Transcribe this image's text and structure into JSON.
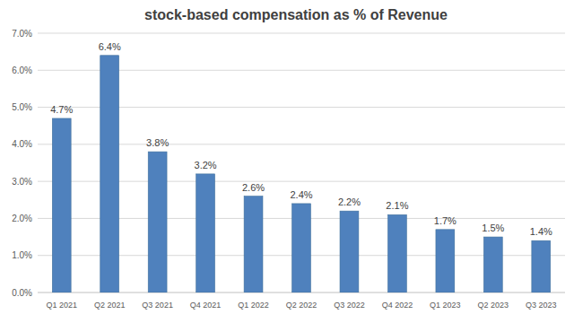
{
  "chart_data": {
    "type": "bar",
    "title": "stock-based compensation as % of Revenue",
    "categories": [
      "Q1 2021",
      "Q2 2021",
      "Q3 2021",
      "Q4 2021",
      "Q1 2022",
      "Q2 2022",
      "Q3 2022",
      "Q4 2022",
      "Q1 2023",
      "Q2 2023",
      "Q3 2023"
    ],
    "values": [
      4.7,
      6.4,
      3.8,
      3.2,
      2.6,
      2.4,
      2.2,
      2.1,
      1.7,
      1.5,
      1.4
    ],
    "value_labels": [
      "4.7%",
      "6.4%",
      "3.8%",
      "3.2%",
      "2.6%",
      "2.4%",
      "2.2%",
      "2.1%",
      "1.7%",
      "1.5%",
      "1.4%"
    ],
    "color": "#4f81bd",
    "ylim": [
      0,
      7
    ],
    "yticks": [
      {
        "value": 0,
        "label": "0.0%"
      },
      {
        "value": 1,
        "label": "1.0%"
      },
      {
        "value": 2,
        "label": "2.0%"
      },
      {
        "value": 3,
        "label": "3.0%"
      },
      {
        "value": 4,
        "label": "4.0%"
      },
      {
        "value": 5,
        "label": "5.0%"
      },
      {
        "value": 6,
        "label": "6.0%"
      },
      {
        "value": 7,
        "label": "7.0%"
      }
    ],
    "grid": true,
    "data_labels": true
  }
}
